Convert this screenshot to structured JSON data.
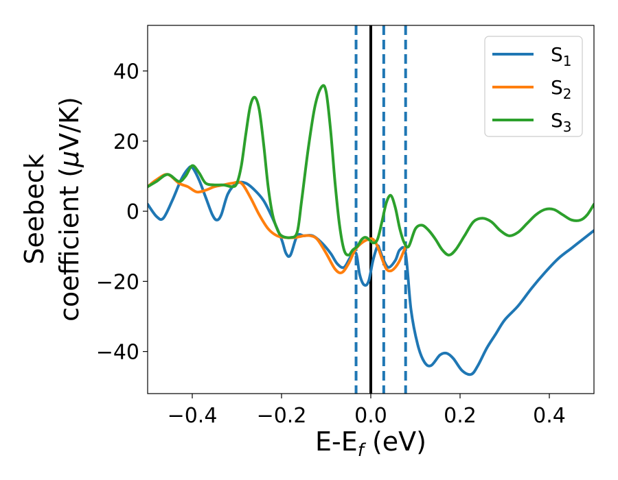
{
  "chart_data": {
    "type": "line",
    "title": "",
    "xlabel": "E-E",
    "xlabel_sub": "f",
    "xlabel_unit": " (eV)",
    "ylabel_line1": "Seebeck",
    "ylabel_line2_text": "coefficient  (",
    "ylabel_mu": "μ",
    "ylabel_line2_unit": "V/K)",
    "xlim": [
      -0.5,
      0.5
    ],
    "ylim": [
      -52,
      53
    ],
    "x_ticks": [
      -0.4,
      -0.2,
      0.0,
      0.2,
      0.4
    ],
    "x_tick_labels": [
      "−0.4",
      "−0.2",
      "0.0",
      "0.2",
      "0.4"
    ],
    "y_ticks": [
      -40,
      -20,
      0,
      20,
      40
    ],
    "y_tick_labels": [
      "−40",
      "−20",
      "0",
      "20",
      "40"
    ],
    "grid": false,
    "legend_position": "top-right",
    "vertical_lines": [
      {
        "x": -0.033,
        "style": "dashed",
        "color": "#1f77b4"
      },
      {
        "x": 0.0,
        "style": "solid",
        "color": "#000000"
      },
      {
        "x": 0.029,
        "style": "dashed",
        "color": "#1f77b4"
      },
      {
        "x": 0.078,
        "style": "dashed",
        "color": "#1f77b4"
      }
    ],
    "series": [
      {
        "name": "S",
        "name_sub": "1",
        "color": "#1f77b4",
        "points": [
          [
            -0.5,
            2
          ],
          [
            -0.48,
            -1.5
          ],
          [
            -0.465,
            -2
          ],
          [
            -0.445,
            3
          ],
          [
            -0.425,
            9
          ],
          [
            -0.41,
            12
          ],
          [
            -0.4,
            12.5
          ],
          [
            -0.385,
            9
          ],
          [
            -0.37,
            4
          ],
          [
            -0.355,
            -1
          ],
          [
            -0.345,
            -2.5
          ],
          [
            -0.335,
            -1
          ],
          [
            -0.32,
            5
          ],
          [
            -0.3,
            8
          ],
          [
            -0.28,
            8
          ],
          [
            -0.26,
            6
          ],
          [
            -0.24,
            3
          ],
          [
            -0.22,
            -2
          ],
          [
            -0.2,
            -8
          ],
          [
            -0.19,
            -12
          ],
          [
            -0.18,
            -12.5
          ],
          [
            -0.165,
            -7
          ],
          [
            -0.15,
            -7
          ],
          [
            -0.13,
            -7
          ],
          [
            -0.11,
            -9
          ],
          [
            -0.09,
            -12
          ],
          [
            -0.075,
            -15
          ],
          [
            -0.06,
            -16
          ],
          [
            -0.045,
            -13
          ],
          [
            -0.033,
            -12
          ],
          [
            -0.025,
            -18
          ],
          [
            -0.015,
            -21
          ],
          [
            -0.005,
            -20
          ],
          [
            0.005,
            -14
          ],
          [
            0.015,
            -10
          ],
          [
            0.02,
            -11
          ],
          [
            0.029,
            -14
          ],
          [
            0.04,
            -16
          ],
          [
            0.055,
            -14
          ],
          [
            0.065,
            -11
          ],
          [
            0.078,
            -12
          ],
          [
            0.09,
            -28
          ],
          [
            0.105,
            -38
          ],
          [
            0.12,
            -43
          ],
          [
            0.135,
            -44
          ],
          [
            0.155,
            -41
          ],
          [
            0.17,
            -40.5
          ],
          [
            0.185,
            -42
          ],
          [
            0.205,
            -45.5
          ],
          [
            0.225,
            -46.5
          ],
          [
            0.24,
            -44
          ],
          [
            0.26,
            -39
          ],
          [
            0.28,
            -35
          ],
          [
            0.3,
            -31
          ],
          [
            0.33,
            -27
          ],
          [
            0.36,
            -22
          ],
          [
            0.39,
            -17.5
          ],
          [
            0.42,
            -13.5
          ],
          [
            0.45,
            -10.5
          ],
          [
            0.48,
            -7.5
          ],
          [
            0.5,
            -5.5
          ]
        ]
      },
      {
        "name": "S",
        "name_sub": "2",
        "color": "#ff7f0e",
        "points": [
          [
            -0.5,
            7
          ],
          [
            -0.48,
            9
          ],
          [
            -0.455,
            10.5
          ],
          [
            -0.43,
            8
          ],
          [
            -0.41,
            7
          ],
          [
            -0.39,
            5.5
          ],
          [
            -0.37,
            6
          ],
          [
            -0.35,
            7
          ],
          [
            -0.33,
            7.5
          ],
          [
            -0.31,
            8
          ],
          [
            -0.29,
            8
          ],
          [
            -0.27,
            4
          ],
          [
            -0.25,
            -1
          ],
          [
            -0.23,
            -5
          ],
          [
            -0.21,
            -7
          ],
          [
            -0.19,
            -7.5
          ],
          [
            -0.17,
            -7.5
          ],
          [
            -0.15,
            -7
          ],
          [
            -0.135,
            -7
          ],
          [
            -0.12,
            -8
          ],
          [
            -0.1,
            -12
          ],
          [
            -0.08,
            -16.5
          ],
          [
            -0.065,
            -17.5
          ],
          [
            -0.05,
            -15
          ],
          [
            -0.035,
            -11
          ],
          [
            -0.02,
            -9
          ],
          [
            -0.005,
            -8
          ],
          [
            0.005,
            -8
          ],
          [
            0.015,
            -10
          ],
          [
            0.025,
            -13.5
          ],
          [
            0.035,
            -16.5
          ],
          [
            0.045,
            -17
          ],
          [
            0.055,
            -16
          ],
          [
            0.065,
            -14
          ],
          [
            0.075,
            -11
          ],
          [
            0.078,
            -10
          ]
        ]
      },
      {
        "name": "S",
        "name_sub": "3",
        "color": "#2ca02c",
        "points": [
          [
            -0.5,
            7
          ],
          [
            -0.48,
            8.5
          ],
          [
            -0.455,
            10.5
          ],
          [
            -0.43,
            8.5
          ],
          [
            -0.415,
            10
          ],
          [
            -0.4,
            13
          ],
          [
            -0.385,
            11
          ],
          [
            -0.37,
            8
          ],
          [
            -0.35,
            7.5
          ],
          [
            -0.33,
            7.5
          ],
          [
            -0.31,
            7
          ],
          [
            -0.3,
            8
          ],
          [
            -0.29,
            13
          ],
          [
            -0.28,
            22
          ],
          [
            -0.27,
            30
          ],
          [
            -0.26,
            32.5
          ],
          [
            -0.25,
            29
          ],
          [
            -0.24,
            19
          ],
          [
            -0.23,
            7
          ],
          [
            -0.22,
            -1
          ],
          [
            -0.21,
            -5
          ],
          [
            -0.2,
            -7
          ],
          [
            -0.18,
            -7.5
          ],
          [
            -0.165,
            -6
          ],
          [
            -0.155,
            3
          ],
          [
            -0.14,
            18
          ],
          [
            -0.125,
            30
          ],
          [
            -0.11,
            35.5
          ],
          [
            -0.1,
            34
          ],
          [
            -0.09,
            23
          ],
          [
            -0.08,
            8
          ],
          [
            -0.07,
            -4
          ],
          [
            -0.06,
            -11
          ],
          [
            -0.05,
            -12.5
          ],
          [
            -0.04,
            -11
          ],
          [
            -0.03,
            -10
          ],
          [
            -0.02,
            -8
          ],
          [
            -0.01,
            -7.5
          ],
          [
            0.005,
            -9
          ],
          [
            0.015,
            -8
          ],
          [
            0.025,
            -3
          ],
          [
            0.035,
            2.5
          ],
          [
            0.045,
            4.5
          ],
          [
            0.055,
            1
          ],
          [
            0.065,
            -5
          ],
          [
            0.075,
            -9
          ],
          [
            0.085,
            -10
          ],
          [
            0.1,
            -5
          ],
          [
            0.115,
            -4
          ],
          [
            0.13,
            -5.5
          ],
          [
            0.145,
            -8
          ],
          [
            0.16,
            -11
          ],
          [
            0.175,
            -12.5
          ],
          [
            0.19,
            -11
          ],
          [
            0.21,
            -7
          ],
          [
            0.23,
            -3
          ],
          [
            0.25,
            -2
          ],
          [
            0.27,
            -3
          ],
          [
            0.29,
            -5.5
          ],
          [
            0.31,
            -7
          ],
          [
            0.33,
            -6
          ],
          [
            0.35,
            -3.5
          ],
          [
            0.37,
            -1
          ],
          [
            0.39,
            0.5
          ],
          [
            0.41,
            0.5
          ],
          [
            0.43,
            -1
          ],
          [
            0.45,
            -2.5
          ],
          [
            0.47,
            -2.5
          ],
          [
            0.485,
            -1
          ],
          [
            0.5,
            2
          ]
        ]
      }
    ]
  }
}
